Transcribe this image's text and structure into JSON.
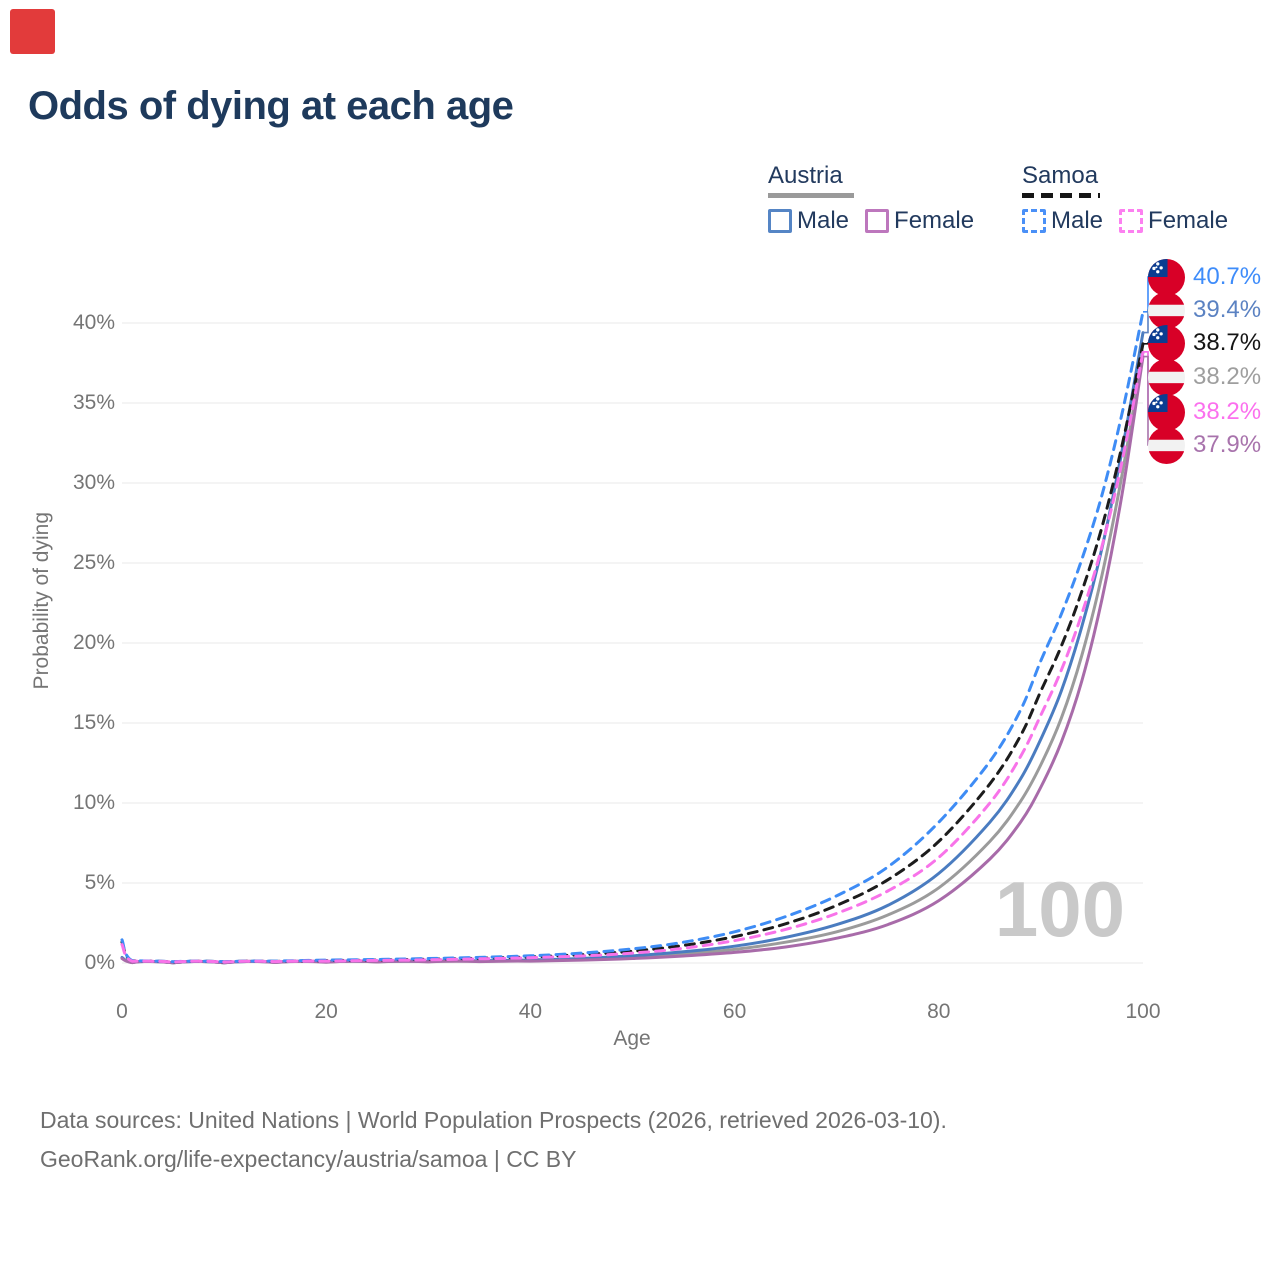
{
  "title": "Odds of dying at each age",
  "red_marker": true,
  "legend": {
    "groups": [
      {
        "country": "Austria",
        "line_style": "solid",
        "underline_color": "#9a9a9a",
        "items": [
          {
            "label": "Male",
            "color": "#5585c5",
            "dashed": false
          },
          {
            "label": "Female",
            "color": "#bd77bd",
            "dashed": false
          }
        ]
      },
      {
        "country": "Samoa",
        "line_style": "dashed",
        "underline_color": "#151515",
        "items": [
          {
            "label": "Male",
            "color": "#4a90f7",
            "dashed": true
          },
          {
            "label": "Female",
            "color": "#fc80f0",
            "dashed": true
          }
        ]
      }
    ]
  },
  "axes": {
    "y_title": "Probability of dying",
    "x_title": "Age",
    "y_ticks": [
      "0%",
      "5%",
      "10%",
      "15%",
      "20%",
      "25%",
      "30%",
      "35%",
      "40%"
    ],
    "y_tick_values": [
      0,
      5,
      10,
      15,
      20,
      25,
      30,
      35,
      40
    ],
    "x_ticks": [
      "0",
      "20",
      "40",
      "60",
      "80",
      "100"
    ],
    "x_tick_values": [
      0,
      20,
      40,
      60,
      80,
      100
    ]
  },
  "watermark": "100",
  "footer": {
    "line1": "Data sources: United Nations | World Population Prospects (2026, retrieved 2026-03-10).",
    "line2": "GeoRank.org/life-expectancy/austria/samoa | CC BY"
  },
  "chart_data": {
    "type": "line",
    "title": "Odds of dying at each age",
    "xlabel": "Age",
    "ylabel": "Probability of dying",
    "xlim": [
      0,
      100
    ],
    "ylim": [
      0,
      43
    ],
    "grid": true,
    "legend_position": "top-right",
    "x": [
      0,
      1,
      5,
      10,
      15,
      20,
      25,
      30,
      35,
      40,
      45,
      50,
      55,
      60,
      65,
      70,
      75,
      80,
      85,
      88,
      90,
      92,
      94,
      96,
      98,
      100
    ],
    "series": [
      {
        "id": "austria-total",
        "name": "Austria — Total",
        "country": "Austria",
        "flag": "austria",
        "color": "#9b9b9b",
        "dashed": false,
        "label_color": "#9e9e9e",
        "end_label": "38.2%",
        "end_value": 38.2,
        "values": [
          0.32,
          0.03,
          0.02,
          0.02,
          0.04,
          0.06,
          0.07,
          0.09,
          0.11,
          0.15,
          0.23,
          0.36,
          0.56,
          0.85,
          1.3,
          1.95,
          3.0,
          4.7,
          7.6,
          10.1,
          12.4,
          15.3,
          19.2,
          24.3,
          30.7,
          38.2
        ]
      },
      {
        "id": "austria-male",
        "name": "Austria — Male",
        "country": "Austria",
        "flag": "austria",
        "color": "#4a7cc0",
        "dashed": false,
        "label_color": "#5b82c2",
        "end_label": "39.4%",
        "end_value": 39.4,
        "values": [
          0.35,
          0.03,
          0.02,
          0.02,
          0.05,
          0.08,
          0.09,
          0.11,
          0.14,
          0.19,
          0.28,
          0.45,
          0.7,
          1.05,
          1.6,
          2.4,
          3.6,
          5.6,
          8.8,
          11.5,
          14.0,
          17.0,
          21.0,
          26.0,
          32.2,
          39.4
        ]
      },
      {
        "id": "austria-female",
        "name": "Austria — Female",
        "country": "Austria",
        "flag": "austria",
        "color": "#a86ba9",
        "dashed": false,
        "label_color": "#a873ac",
        "end_label": "37.9%",
        "end_value": 37.9,
        "values": [
          0.28,
          0.02,
          0.01,
          0.01,
          0.03,
          0.05,
          0.06,
          0.07,
          0.09,
          0.12,
          0.18,
          0.28,
          0.44,
          0.66,
          1.0,
          1.55,
          2.4,
          3.9,
          6.5,
          8.8,
          11.0,
          13.8,
          17.6,
          22.8,
          29.5,
          37.9
        ]
      },
      {
        "id": "samoa-total",
        "name": "Samoa — Total",
        "country": "Samoa",
        "flag": "samoa",
        "color": "#1c1c1c",
        "dashed": true,
        "label_color": "#151515",
        "end_label": "38.7%",
        "end_value": 38.7,
        "values": [
          1.3,
          0.13,
          0.07,
          0.07,
          0.1,
          0.15,
          0.19,
          0.24,
          0.3,
          0.38,
          0.52,
          0.74,
          1.1,
          1.65,
          2.45,
          3.6,
          5.2,
          7.6,
          11.2,
          14.2,
          17.0,
          19.8,
          23.2,
          27.3,
          32.5,
          38.7
        ]
      },
      {
        "id": "samoa-male",
        "name": "Samoa — Male",
        "country": "Samoa",
        "flag": "samoa",
        "color": "#3e8cf5",
        "dashed": true,
        "label_color": "#3e8cfa",
        "end_label": "40.7%",
        "end_value": 40.7,
        "values": [
          1.45,
          0.15,
          0.08,
          0.08,
          0.12,
          0.18,
          0.22,
          0.28,
          0.35,
          0.45,
          0.62,
          0.88,
          1.3,
          1.95,
          2.9,
          4.2,
          6.0,
          8.8,
          12.6,
          15.8,
          18.9,
          21.8,
          25.2,
          29.3,
          34.5,
          40.7
        ]
      },
      {
        "id": "samoa-female",
        "name": "Samoa — Female",
        "country": "Samoa",
        "flag": "samoa",
        "color": "#f873e9",
        "dashed": true,
        "label_color": "#fb70ee",
        "end_label": "38.2%",
        "end_value": 38.2,
        "values": [
          1.15,
          0.11,
          0.06,
          0.06,
          0.09,
          0.12,
          0.16,
          0.2,
          0.26,
          0.33,
          0.44,
          0.62,
          0.92,
          1.4,
          2.1,
          3.1,
          4.5,
          6.6,
          10.0,
          12.9,
          15.5,
          18.3,
          21.8,
          26.1,
          31.5,
          38.2
        ]
      }
    ],
    "end_label_order": [
      "samoa-male",
      "austria-male",
      "samoa-total",
      "austria-total",
      "samoa-female",
      "austria-female"
    ],
    "gridline_color": "#e8e8e8",
    "watermark_color": "#c9c9c9"
  }
}
